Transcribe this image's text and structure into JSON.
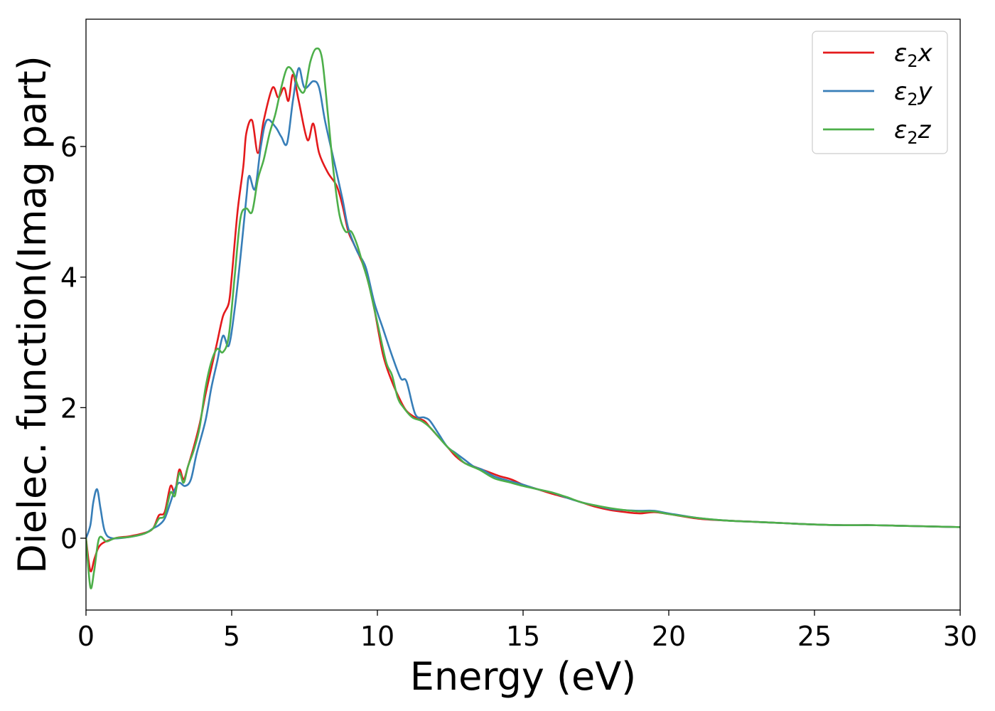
{
  "chart_data": {
    "type": "line",
    "title": "",
    "xlabel": "Energy (eV)",
    "ylabel": "Dielec. function(Imag part)",
    "xlim": [
      0,
      30
    ],
    "ylim": [
      -1.1,
      7.95
    ],
    "xticks": [
      0,
      5,
      10,
      15,
      20,
      25,
      30
    ],
    "xtick_labels": [
      "0",
      "5",
      "10",
      "15",
      "20",
      "25",
      "30"
    ],
    "yticks": [
      0,
      2,
      4,
      6
    ],
    "ytick_labels": [
      "0",
      "2",
      "4",
      "6"
    ],
    "grid": false,
    "legend_position": "top-right",
    "series": [
      {
        "name": "ε2x",
        "legend_base": "ε",
        "legend_sub": "2",
        "legend_tail": "x",
        "color": "#e41a1c",
        "points": [
          [
            0,
            0
          ],
          [
            0.15,
            -0.5
          ],
          [
            0.3,
            -0.3
          ],
          [
            0.5,
            -0.1
          ],
          [
            1,
            0
          ],
          [
            1.5,
            0.03
          ],
          [
            2,
            0.08
          ],
          [
            2.3,
            0.15
          ],
          [
            2.5,
            0.35
          ],
          [
            2.7,
            0.4
          ],
          [
            2.9,
            0.8
          ],
          [
            3.05,
            0.7
          ],
          [
            3.2,
            1.05
          ],
          [
            3.35,
            0.9
          ],
          [
            3.5,
            1.1
          ],
          [
            3.7,
            1.4
          ],
          [
            3.9,
            1.75
          ],
          [
            4.1,
            2.2
          ],
          [
            4.3,
            2.6
          ],
          [
            4.5,
            3.0
          ],
          [
            4.7,
            3.4
          ],
          [
            4.9,
            3.6
          ],
          [
            5.0,
            4.0
          ],
          [
            5.2,
            5.0
          ],
          [
            5.4,
            5.7
          ],
          [
            5.5,
            6.2
          ],
          [
            5.7,
            6.4
          ],
          [
            5.9,
            5.9
          ],
          [
            6.1,
            6.4
          ],
          [
            6.4,
            6.9
          ],
          [
            6.6,
            6.75
          ],
          [
            6.8,
            6.9
          ],
          [
            6.95,
            6.7
          ],
          [
            7.1,
            7.1
          ],
          [
            7.3,
            6.7
          ],
          [
            7.6,
            6.1
          ],
          [
            7.8,
            6.35
          ],
          [
            8.0,
            5.9
          ],
          [
            8.3,
            5.6
          ],
          [
            8.6,
            5.4
          ],
          [
            8.8,
            5.1
          ],
          [
            9.0,
            4.7
          ],
          [
            9.2,
            4.5
          ],
          [
            9.5,
            4.2
          ],
          [
            9.7,
            3.9
          ],
          [
            9.9,
            3.5
          ],
          [
            10.2,
            2.8
          ],
          [
            10.5,
            2.4
          ],
          [
            10.8,
            2.1
          ],
          [
            11.0,
            1.95
          ],
          [
            11.3,
            1.85
          ],
          [
            11.6,
            1.8
          ],
          [
            11.8,
            1.7
          ],
          [
            12.1,
            1.55
          ],
          [
            12.4,
            1.4
          ],
          [
            12.7,
            1.25
          ],
          [
            13.0,
            1.15
          ],
          [
            13.3,
            1.1
          ],
          [
            13.6,
            1.05
          ],
          [
            13.9,
            1.0
          ],
          [
            14.2,
            0.95
          ],
          [
            14.6,
            0.9
          ],
          [
            15.0,
            0.82
          ],
          [
            15.5,
            0.75
          ],
          [
            16.0,
            0.68
          ],
          [
            16.5,
            0.62
          ],
          [
            17.0,
            0.55
          ],
          [
            17.5,
            0.48
          ],
          [
            18.0,
            0.43
          ],
          [
            18.5,
            0.4
          ],
          [
            19.0,
            0.38
          ],
          [
            19.5,
            0.4
          ],
          [
            20.0,
            0.37
          ],
          [
            21.0,
            0.3
          ],
          [
            22.0,
            0.27
          ],
          [
            23.0,
            0.25
          ],
          [
            24.0,
            0.23
          ],
          [
            25.0,
            0.21
          ],
          [
            26.0,
            0.2
          ],
          [
            27.0,
            0.2
          ],
          [
            28.0,
            0.19
          ],
          [
            29.0,
            0.18
          ],
          [
            30.0,
            0.17
          ]
        ]
      },
      {
        "name": "ε2y",
        "legend_base": "ε",
        "legend_sub": "2",
        "legend_tail": "y",
        "color": "#377eb8",
        "points": [
          [
            0,
            0
          ],
          [
            0.15,
            0.2
          ],
          [
            0.25,
            0.55
          ],
          [
            0.38,
            0.75
          ],
          [
            0.5,
            0.45
          ],
          [
            0.65,
            0.1
          ],
          [
            0.9,
            0
          ],
          [
            1.5,
            0.02
          ],
          [
            2,
            0.07
          ],
          [
            2.3,
            0.15
          ],
          [
            2.5,
            0.2
          ],
          [
            2.7,
            0.3
          ],
          [
            2.9,
            0.55
          ],
          [
            3.05,
            0.75
          ],
          [
            3.2,
            0.85
          ],
          [
            3.4,
            0.8
          ],
          [
            3.6,
            0.9
          ],
          [
            3.8,
            1.3
          ],
          [
            4.1,
            1.8
          ],
          [
            4.3,
            2.3
          ],
          [
            4.5,
            2.7
          ],
          [
            4.7,
            3.1
          ],
          [
            4.9,
            2.95
          ],
          [
            5.1,
            3.5
          ],
          [
            5.3,
            4.3
          ],
          [
            5.5,
            5.2
          ],
          [
            5.6,
            5.55
          ],
          [
            5.8,
            5.35
          ],
          [
            6.0,
            6.0
          ],
          [
            6.2,
            6.4
          ],
          [
            6.5,
            6.3
          ],
          [
            6.7,
            6.15
          ],
          [
            6.9,
            6.05
          ],
          [
            7.1,
            6.7
          ],
          [
            7.3,
            7.2
          ],
          [
            7.5,
            6.9
          ],
          [
            7.8,
            7.0
          ],
          [
            8.0,
            6.9
          ],
          [
            8.2,
            6.4
          ],
          [
            8.5,
            5.8
          ],
          [
            8.8,
            5.2
          ],
          [
            9.0,
            4.75
          ],
          [
            9.3,
            4.4
          ],
          [
            9.6,
            4.15
          ],
          [
            9.9,
            3.6
          ],
          [
            10.2,
            3.2
          ],
          [
            10.5,
            2.8
          ],
          [
            10.8,
            2.45
          ],
          [
            11.0,
            2.4
          ],
          [
            11.3,
            1.9
          ],
          [
            11.6,
            1.85
          ],
          [
            11.8,
            1.8
          ],
          [
            12.1,
            1.6
          ],
          [
            12.4,
            1.4
          ],
          [
            12.7,
            1.3
          ],
          [
            13.0,
            1.2
          ],
          [
            13.3,
            1.1
          ],
          [
            13.6,
            1.05
          ],
          [
            14.0,
            0.95
          ],
          [
            14.5,
            0.88
          ],
          [
            15.0,
            0.82
          ],
          [
            15.5,
            0.75
          ],
          [
            16.0,
            0.7
          ],
          [
            16.5,
            0.62
          ],
          [
            17.0,
            0.55
          ],
          [
            17.5,
            0.5
          ],
          [
            18.0,
            0.45
          ],
          [
            18.5,
            0.43
          ],
          [
            19.0,
            0.42
          ],
          [
            19.5,
            0.42
          ],
          [
            20.0,
            0.38
          ],
          [
            21.0,
            0.31
          ],
          [
            22.0,
            0.27
          ],
          [
            23.0,
            0.25
          ],
          [
            24.0,
            0.23
          ],
          [
            25.0,
            0.21
          ],
          [
            26.0,
            0.2
          ],
          [
            27.0,
            0.2
          ],
          [
            28.0,
            0.19
          ],
          [
            29.0,
            0.18
          ],
          [
            30.0,
            0.17
          ]
        ]
      },
      {
        "name": "ε2z",
        "legend_base": "ε",
        "legend_sub": "2",
        "legend_tail": "z",
        "color": "#4daf4a",
        "points": [
          [
            0,
            0
          ],
          [
            0.15,
            -0.75
          ],
          [
            0.28,
            -0.5
          ],
          [
            0.45,
            0
          ],
          [
            0.7,
            -0.05
          ],
          [
            1.0,
            0
          ],
          [
            1.5,
            0.02
          ],
          [
            2,
            0.07
          ],
          [
            2.3,
            0.15
          ],
          [
            2.5,
            0.3
          ],
          [
            2.7,
            0.35
          ],
          [
            2.9,
            0.7
          ],
          [
            3.05,
            0.65
          ],
          [
            3.2,
            1.0
          ],
          [
            3.35,
            0.85
          ],
          [
            3.5,
            1.1
          ],
          [
            3.7,
            1.35
          ],
          [
            3.9,
            1.7
          ],
          [
            4.1,
            2.3
          ],
          [
            4.3,
            2.7
          ],
          [
            4.5,
            2.9
          ],
          [
            4.7,
            2.85
          ],
          [
            4.9,
            3.1
          ],
          [
            5.1,
            4.0
          ],
          [
            5.3,
            4.9
          ],
          [
            5.5,
            5.05
          ],
          [
            5.7,
            5.0
          ],
          [
            5.9,
            5.5
          ],
          [
            6.1,
            5.8
          ],
          [
            6.3,
            6.2
          ],
          [
            6.5,
            6.5
          ],
          [
            6.7,
            6.9
          ],
          [
            6.9,
            7.2
          ],
          [
            7.1,
            7.15
          ],
          [
            7.3,
            6.9
          ],
          [
            7.5,
            6.85
          ],
          [
            7.7,
            7.3
          ],
          [
            7.9,
            7.5
          ],
          [
            8.1,
            7.35
          ],
          [
            8.3,
            6.5
          ],
          [
            8.5,
            5.6
          ],
          [
            8.7,
            4.95
          ],
          [
            8.9,
            4.7
          ],
          [
            9.1,
            4.7
          ],
          [
            9.3,
            4.5
          ],
          [
            9.5,
            4.2
          ],
          [
            9.7,
            3.9
          ],
          [
            10.0,
            3.3
          ],
          [
            10.3,
            2.7
          ],
          [
            10.5,
            2.5
          ],
          [
            10.7,
            2.15
          ],
          [
            10.9,
            2.0
          ],
          [
            11.2,
            1.85
          ],
          [
            11.5,
            1.8
          ],
          [
            11.8,
            1.7
          ],
          [
            12.1,
            1.55
          ],
          [
            12.4,
            1.4
          ],
          [
            12.7,
            1.28
          ],
          [
            13.0,
            1.15
          ],
          [
            13.5,
            1.05
          ],
          [
            14.0,
            0.92
          ],
          [
            14.5,
            0.86
          ],
          [
            15.0,
            0.8
          ],
          [
            15.5,
            0.75
          ],
          [
            16.0,
            0.7
          ],
          [
            16.5,
            0.63
          ],
          [
            17.0,
            0.55
          ],
          [
            17.5,
            0.5
          ],
          [
            18.0,
            0.46
          ],
          [
            18.5,
            0.43
          ],
          [
            19.0,
            0.41
          ],
          [
            19.5,
            0.41
          ],
          [
            20.0,
            0.37
          ],
          [
            21.0,
            0.31
          ],
          [
            22.0,
            0.27
          ],
          [
            23.0,
            0.25
          ],
          [
            24.0,
            0.23
          ],
          [
            25.0,
            0.21
          ],
          [
            26.0,
            0.2
          ],
          [
            27.0,
            0.2
          ],
          [
            28.0,
            0.19
          ],
          [
            29.0,
            0.18
          ],
          [
            30.0,
            0.17
          ]
        ]
      }
    ]
  }
}
